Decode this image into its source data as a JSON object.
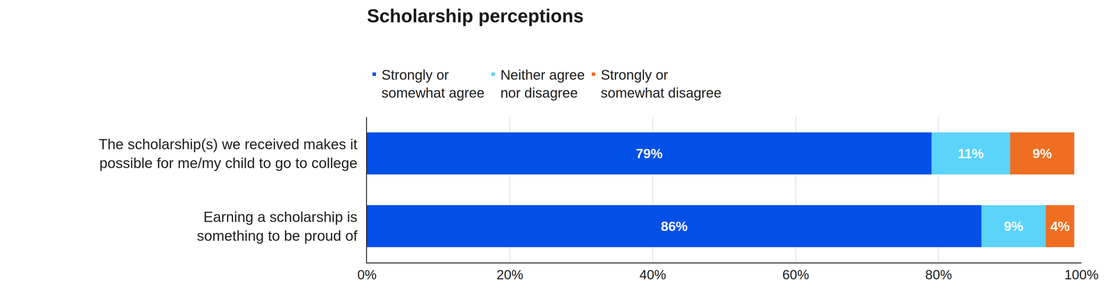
{
  "chart_data": {
    "type": "bar",
    "title": "Scholarship perceptions",
    "orientation": "horizontal",
    "stacked": true,
    "data_labels": true,
    "grid": true,
    "legend": "top left",
    "categories": [
      "The scholarship(s) we received makes it possible for me/my child to go to college",
      "Earning a scholarship is something to be proud of"
    ],
    "series": [
      {
        "name": "Strongly or somewhat agree",
        "color": "#0350e8",
        "values": [
          79,
          86
        ],
        "value_labels": [
          "79%",
          "86%"
        ]
      },
      {
        "name": "Neither agree nor disagree",
        "color": "#5bd3fa",
        "values": [
          11,
          9
        ],
        "value_labels": [
          "11%",
          "9%"
        ]
      },
      {
        "name": "Strongly or somewhat disagree",
        "color": "#ef6e21",
        "values": [
          9,
          4
        ],
        "value_labels": [
          "9%",
          "4%"
        ]
      }
    ],
    "xlim": [
      0,
      100
    ],
    "xticks": [
      {
        "value": 0,
        "label": "0%"
      },
      {
        "value": 20,
        "label": "20%"
      },
      {
        "value": 40,
        "label": "40%"
      },
      {
        "value": 60,
        "label": "60%"
      },
      {
        "value": 80,
        "label": "80%"
      },
      {
        "value": 100,
        "label": "100%"
      }
    ]
  }
}
